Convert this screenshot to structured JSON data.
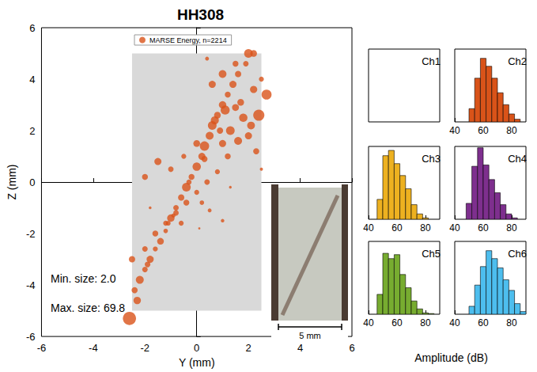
{
  "chart_data": [
    {
      "type": "scatter",
      "title": "HH308",
      "xlabel": "Y (mm)",
      "ylabel": "Z (mm)",
      "xlim": [
        -6,
        6
      ],
      "xticks": [
        -6,
        -4,
        -2,
        0,
        2,
        4,
        6
      ],
      "ylim": [
        -6,
        6
      ],
      "yticks": [
        -6,
        -4,
        -2,
        0,
        2,
        4,
        6
      ],
      "grid": false,
      "legend": "top",
      "annotations": [
        "Min. size: 2.0",
        "Max. size: 69.8"
      ],
      "sample_region": {
        "x": [
          -2.5,
          2.5
        ],
        "y": [
          -5,
          5
        ]
      },
      "series": [
        {
          "name": "MARSE Energy, n=2214",
          "color": "#d95319",
          "marker": "circle",
          "x": [
            -2.6,
            -2.4,
            -2.2,
            -2.0,
            -1.8,
            -1.6,
            -1.4,
            -1.2,
            -1.0,
            -0.8,
            -0.6,
            -0.4,
            -0.2,
            0.0,
            0.2,
            0.3,
            0.5,
            0.6,
            0.8,
            1.0,
            1.2,
            1.4,
            1.6,
            1.9,
            2.2,
            1.3,
            1.6,
            2.0,
            1.8,
            2.4,
            2.3,
            1.0,
            0.0,
            -0.5,
            -1.5,
            -2.0,
            -1.0,
            -2.5,
            -2.0,
            -1.6,
            -1.2,
            -0.8,
            -0.4,
            0.0,
            0.4,
            0.8,
            1.2,
            -0.6,
            0.2,
            0.5,
            1.0,
            0.6,
            1.0,
            2.0,
            1.5,
            2.7,
            2.5,
            0.4,
            0.1,
            -1.8,
            2.5,
            1.3,
            -2.3,
            -1.1,
            0.7,
            1.7,
            0.9,
            -0.3,
            2.1,
            1.1,
            -1.9,
            -0.9,
            0.3,
            1.5,
            2.2
          ],
          "y": [
            -5.3,
            -4.2,
            -3.8,
            -3.4,
            -3.0,
            -2.6,
            -2.3,
            -1.9,
            -1.4,
            -1.0,
            -0.6,
            -0.2,
            0.2,
            0.6,
            1.0,
            1.4,
            1.8,
            2.2,
            2.6,
            3.0,
            3.4,
            3.8,
            4.2,
            4.6,
            5.0,
            2.0,
            1.6,
            1.8,
            2.5,
            2.6,
            1.2,
            1.5,
            1.5,
            1.0,
            0.8,
            0.2,
            0.5,
            -3.0,
            -2.6,
            -2.0,
            -1.6,
            -1.2,
            -0.8,
            -0.4,
            0.0,
            0.4,
            1.0,
            -1.6,
            -0.8,
            -1.1,
            -1.5,
            3.8,
            4.2,
            5.0,
            4.6,
            3.4,
            4.0,
            4.8,
            -1.8,
            -1.0,
            0.5,
            -0.2,
            -4.6,
            -1.6,
            2.4,
            3.1,
            2.0,
            0.0,
            2.2,
            2.8,
            -3.2,
            -1.3,
            0.9,
            2.9,
            3.6
          ],
          "size": [
            69.8,
            15,
            25,
            12,
            20,
            10,
            18,
            8,
            22,
            12,
            16,
            30,
            14,
            28,
            20,
            35,
            25,
            30,
            18,
            22,
            14,
            20,
            16,
            12,
            18,
            30,
            25,
            20,
            28,
            50,
            15,
            20,
            18,
            10,
            20,
            14,
            12,
            16,
            12,
            14,
            10,
            12,
            14,
            10,
            12,
            10,
            14,
            10,
            8,
            6,
            5,
            20,
            24,
            30,
            14,
            40,
            10,
            6,
            2.0,
            3,
            4,
            3,
            22,
            9,
            26,
            18,
            16,
            11,
            24,
            33,
            13,
            7,
            15,
            19,
            21
          ]
        }
      ]
    },
    {
      "type": "histogram",
      "title": "Ch1",
      "bins": [],
      "counts": [],
      "color": "#0072bd",
      "xlim": [
        40,
        90
      ],
      "ylim": [
        0,
        550
      ],
      "tick_labels": false
    },
    {
      "type": "histogram",
      "title": "Ch2",
      "bins": [
        50,
        54,
        58,
        62,
        66,
        70,
        74,
        78,
        82,
        86
      ],
      "counts": [
        100,
        330,
        480,
        420,
        330,
        220,
        130,
        60,
        20
      ],
      "color": "#d95319",
      "xlim": [
        40,
        90
      ],
      "xticks": [
        40,
        60,
        80
      ],
      "ylim": [
        0,
        550
      ],
      "tick_labels": "x"
    },
    {
      "type": "histogram",
      "title": "Ch3",
      "bins": [
        46,
        50,
        54,
        58,
        62,
        66,
        70,
        74,
        78,
        82
      ],
      "counts": [
        150,
        480,
        520,
        420,
        330,
        230,
        110,
        40,
        10
      ],
      "color": "#edb120",
      "xlim": [
        40,
        90
      ],
      "xticks": [
        40,
        60,
        80
      ],
      "ylim": [
        0,
        550
      ],
      "tick_labels": "x"
    },
    {
      "type": "histogram",
      "title": "Ch4",
      "bins": [
        48,
        52,
        56,
        60,
        64,
        68,
        72,
        76,
        80,
        84
      ],
      "counts": [
        120,
        400,
        540,
        410,
        300,
        200,
        110,
        40,
        10
      ],
      "color": "#7e2f8e",
      "xlim": [
        40,
        90
      ],
      "xticks": [
        40,
        60,
        80
      ],
      "ylim": [
        0,
        550
      ],
      "tick_labels": "x"
    },
    {
      "type": "histogram",
      "title": "Ch5",
      "bins": [
        46,
        50,
        54,
        58,
        62,
        66,
        70,
        74,
        78,
        82,
        86
      ],
      "counts": [
        150,
        460,
        420,
        450,
        300,
        200,
        100,
        40,
        10,
        5
      ],
      "color": "#77ac30",
      "xlim": [
        40,
        90
      ],
      "xticks": [
        40,
        60,
        80
      ],
      "ylim": [
        0,
        550
      ],
      "tick_labels": "x"
    },
    {
      "type": "histogram",
      "title": "Ch6",
      "bins": [
        50,
        54,
        58,
        62,
        66,
        70,
        74,
        78,
        82,
        86,
        90
      ],
      "counts": [
        60,
        220,
        360,
        480,
        420,
        350,
        260,
        180,
        80,
        20
      ],
      "color": "#4dbeee",
      "xlim": [
        40,
        90
      ],
      "xticks": [
        40,
        60,
        80
      ],
      "ylim": [
        0,
        550
      ],
      "tick_labels": "x"
    }
  ],
  "histogram_xlabel": "Amplitude (dB)",
  "inset": {
    "scale_bar": "5 mm"
  }
}
